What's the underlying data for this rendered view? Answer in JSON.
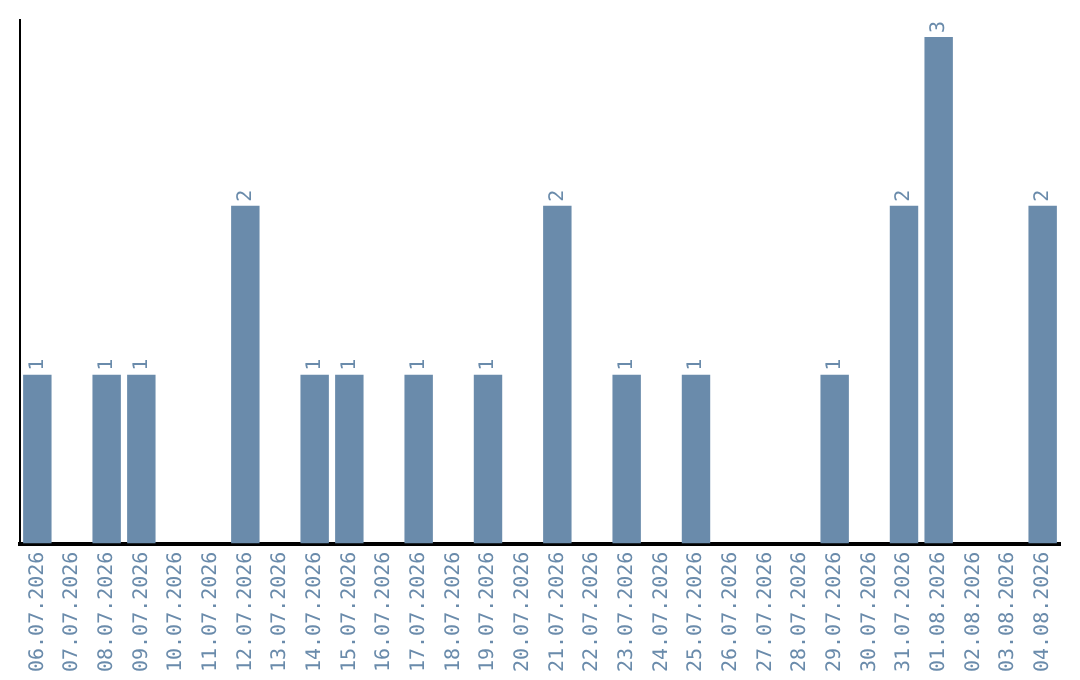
{
  "chart_data": {
    "type": "bar",
    "categories": [
      "06.07.2026",
      "07.07.2026",
      "08.07.2026",
      "09.07.2026",
      "10.07.2026",
      "11.07.2026",
      "12.07.2026",
      "13.07.2026",
      "14.07.2026",
      "15.07.2026",
      "16.07.2026",
      "17.07.2026",
      "18.07.2026",
      "19.07.2026",
      "20.07.2026",
      "21.07.2026",
      "22.07.2026",
      "23.07.2026",
      "24.07.2026",
      "25.07.2026",
      "26.07.2026",
      "27.07.2026",
      "28.07.2026",
      "29.07.2026",
      "30.07.2026",
      "31.07.2026",
      "01.08.2026",
      "02.08.2026",
      "03.08.2026",
      "04.08.2026"
    ],
    "values": [
      1,
      0,
      1,
      1,
      0,
      0,
      2,
      0,
      1,
      1,
      0,
      1,
      0,
      1,
      0,
      2,
      0,
      1,
      0,
      1,
      0,
      0,
      0,
      1,
      0,
      2,
      3,
      0,
      0,
      2
    ],
    "value_labels": [
      "1",
      null,
      "1",
      "1",
      null,
      null,
      "2",
      null,
      "1",
      "1",
      null,
      "1",
      null,
      "1",
      null,
      "2",
      null,
      "1",
      null,
      "1",
      null,
      null,
      null,
      "1",
      null,
      "2",
      "3",
      null,
      null,
      "2"
    ],
    "color": "#6a8bab",
    "ylim": [
      0,
      3.1
    ],
    "tick_labels": "x",
    "grid": false,
    "legend": false
  }
}
